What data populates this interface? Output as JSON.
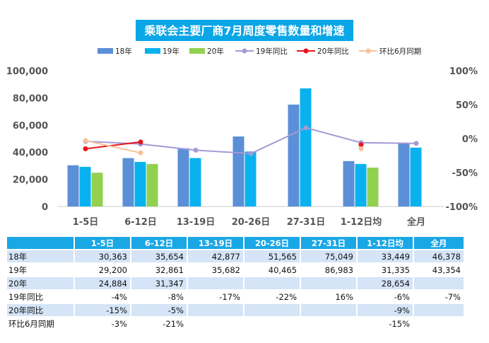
{
  "chart_data": {
    "type": "bar+line",
    "title": "乘联会主要厂商7月周度零售数量和增速",
    "categories": [
      "1-5日",
      "6-12日",
      "13-19日",
      "20-26日",
      "27-31日",
      "1-12日均",
      "全月"
    ],
    "left_axis": {
      "min": 0,
      "max": 100000,
      "ticks": [
        "0",
        "20,000",
        "40,000",
        "60,000",
        "80,000",
        "100,000"
      ]
    },
    "right_axis": {
      "min": -100,
      "max": 100,
      "ticks": [
        "-100%",
        "-50%",
        "0%",
        "50%",
        "100%"
      ]
    },
    "bar_series": [
      {
        "name": "18年",
        "color": "#5b8fd8",
        "values": [
          30363,
          35654,
          42877,
          51565,
          75049,
          33449,
          46378
        ]
      },
      {
        "name": "19年",
        "color": "#09b2ef",
        "values": [
          29200,
          32861,
          35682,
          40465,
          86983,
          31335,
          43354
        ]
      },
      {
        "name": "20年",
        "color": "#92d050",
        "values": [
          24884,
          31347,
          null,
          null,
          null,
          28654,
          null
        ]
      }
    ],
    "line_series": [
      {
        "name": "19年同比",
        "color": "#a59ad6",
        "values": [
          -4,
          -8,
          -17,
          -22,
          16,
          -6,
          -7
        ]
      },
      {
        "name": "20年同比",
        "color": "#e8151b",
        "values": [
          -15,
          -5,
          null,
          null,
          null,
          -9,
          null
        ]
      },
      {
        "name": "环比6月同期",
        "color": "#f7c29a",
        "values": [
          -3,
          -21,
          null,
          null,
          null,
          -15,
          null
        ]
      }
    ]
  },
  "table": {
    "headers": [
      "1-5日",
      "6-12日",
      "13-19日",
      "20-26日",
      "27-31日",
      "1-12日均",
      "全月"
    ],
    "rows": [
      {
        "label": "18年",
        "cells": [
          "30,363",
          "35,654",
          "42,877",
          "51,565",
          "75,049",
          "33,449",
          "46,378"
        ]
      },
      {
        "label": "19年",
        "cells": [
          "29,200",
          "32,861",
          "35,682",
          "40,465",
          "86,983",
          "31,335",
          "43,354"
        ]
      },
      {
        "label": "20年",
        "cells": [
          "24,884",
          "31,347",
          "",
          "",
          "",
          "28,654",
          ""
        ]
      },
      {
        "label": "19年同比",
        "cells": [
          "-4%",
          "-8%",
          "-17%",
          "-22%",
          "16%",
          "-6%",
          "-7%"
        ]
      },
      {
        "label": "20年同比",
        "cells": [
          "-15%",
          "-5%",
          "",
          "",
          "",
          "-9%",
          ""
        ]
      },
      {
        "label": "环比6月同期",
        "cells": [
          "-3%",
          "-21%",
          "",
          "",
          "",
          "-15%",
          ""
        ]
      }
    ]
  }
}
